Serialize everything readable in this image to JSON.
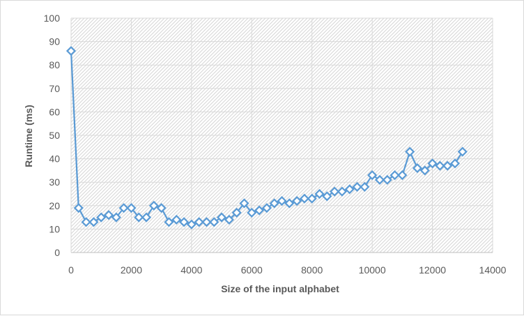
{
  "chart_data": {
    "type": "scatter",
    "title": "",
    "xlabel": "Size of the input alphabet",
    "ylabel": "Runtime (ms)",
    "xlim": [
      0,
      14000
    ],
    "ylim": [
      0,
      100
    ],
    "x_ticks": [
      0,
      2000,
      4000,
      6000,
      8000,
      10000,
      12000,
      14000
    ],
    "y_ticks": [
      0,
      10,
      20,
      30,
      40,
      50,
      60,
      70,
      80,
      90,
      100
    ],
    "grid": "major gridlines, hatched plot area",
    "legend": "none",
    "marker": "diamond",
    "series_color": "#5b9bd5",
    "series": [
      {
        "x": [
          0,
          250,
          500,
          750,
          1000,
          1250,
          1500,
          1750,
          2000,
          2250,
          2500,
          2750,
          3000,
          3250,
          3500,
          3750,
          4000,
          4250,
          4500,
          4750,
          5000,
          5250,
          5500,
          5750,
          6000,
          6250,
          6500,
          6750,
          7000,
          7250,
          7500,
          7750,
          8000,
          8250,
          8500,
          8750,
          9000,
          9250,
          9500,
          9750,
          10000,
          10250,
          10500,
          10750,
          11000,
          11250,
          11500,
          11750,
          12000,
          12250,
          12500,
          12750,
          13000
        ],
        "y": [
          86,
          19,
          13,
          13,
          15,
          16,
          15,
          19,
          19,
          15,
          15,
          20,
          19,
          13,
          14,
          13,
          12,
          13,
          13,
          13,
          15,
          14,
          17,
          21,
          17,
          18,
          19,
          21,
          22,
          21,
          22,
          23,
          23,
          25,
          24,
          26,
          26,
          27,
          28,
          28,
          33,
          31,
          31,
          33,
          33,
          43,
          36,
          35,
          38,
          37,
          37,
          38,
          43
        ]
      }
    ]
  }
}
